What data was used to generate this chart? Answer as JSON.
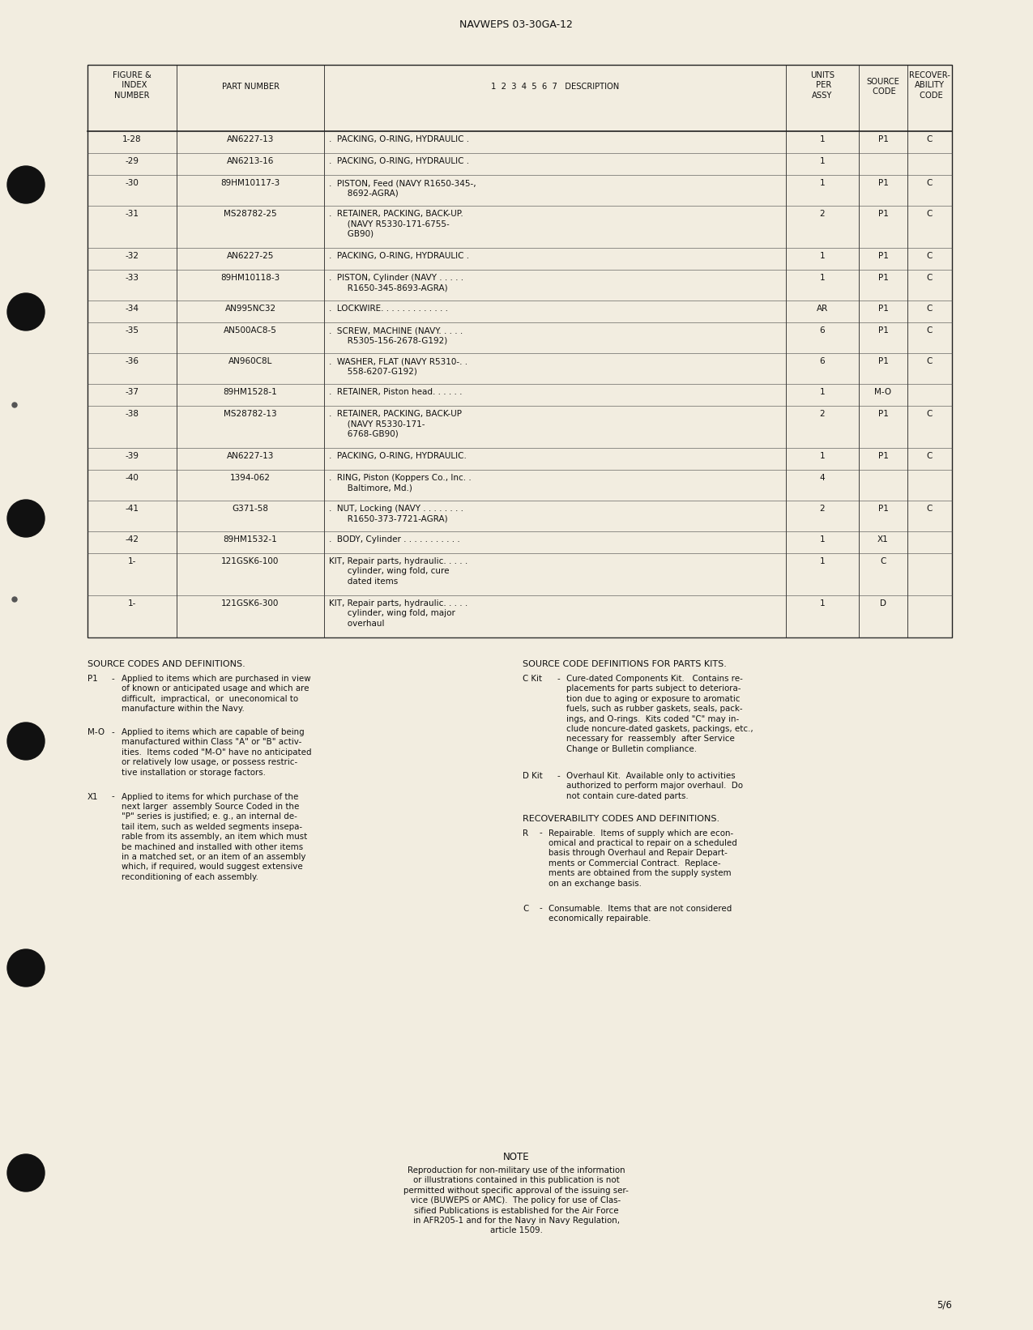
{
  "page_title": "NAVWEPS 03-30GA-12",
  "page_number": "5/6",
  "background_color": "#f2ede0",
  "table_rows": [
    {
      "fig": "1-28",
      "part": "AN6227-13",
      "desc": ".  PACKING, O-RING, HYDRAULIC .",
      "qty": "1",
      "src": "P1",
      "rec": "C",
      "nlines": 1
    },
    {
      "fig": "-29",
      "part": "AN6213-16",
      "desc": ".  PACKING, O-RING, HYDRAULIC .",
      "qty": "1",
      "src": "",
      "rec": "",
      "nlines": 1
    },
    {
      "fig": "-30",
      "part": "89HM10117-3",
      "desc": ".  PISTON, Feed (NAVY R1650-345-,\n       8692-AGRA)",
      "qty": "1",
      "src": "P1",
      "rec": "C",
      "nlines": 2
    },
    {
      "fig": "-31",
      "part": "MS28782-25",
      "desc": ".  RETAINER, PACKING, BACK-UP.\n       (NAVY R5330-171-6755-\n       GB90)",
      "qty": "2",
      "src": "P1",
      "rec": "C",
      "nlines": 3
    },
    {
      "fig": "-32",
      "part": "AN6227-25",
      "desc": ".  PACKING, O-RING, HYDRAULIC .",
      "qty": "1",
      "src": "P1",
      "rec": "C",
      "nlines": 1
    },
    {
      "fig": "-33",
      "part": "89HM10118-3",
      "desc": ".  PISTON, Cylinder (NAVY . . . . .\n       R1650-345-8693-AGRA)",
      "qty": "1",
      "src": "P1",
      "rec": "C",
      "nlines": 2
    },
    {
      "fig": "-34",
      "part": "AN995NC32",
      "desc": ".  LOCKWIRE. . . . . . . . . . . . .",
      "qty": "AR",
      "src": "P1",
      "rec": "C",
      "nlines": 1
    },
    {
      "fig": "-35",
      "part": "AN500AC8-5",
      "desc": ".  SCREW, MACHINE (NAVY. . . . .\n       R5305-156-2678-G192)",
      "qty": "6",
      "src": "P1",
      "rec": "C",
      "nlines": 2
    },
    {
      "fig": "-36",
      "part": "AN960C8L",
      "desc": ".  WASHER, FLAT (NAVY R5310-. .\n       558-6207-G192)",
      "qty": "6",
      "src": "P1",
      "rec": "C",
      "nlines": 2
    },
    {
      "fig": "-37",
      "part": "89HM1528-1",
      "desc": ".  RETAINER, Piston head. . . . . .",
      "qty": "1",
      "src": "M-O",
      "rec": "",
      "nlines": 1
    },
    {
      "fig": "-38",
      "part": "MS28782-13",
      "desc": ".  RETAINER, PACKING, BACK-UP\n       (NAVY R5330-171-\n       6768-GB90)",
      "qty": "2",
      "src": "P1",
      "rec": "C",
      "nlines": 3
    },
    {
      "fig": "-39",
      "part": "AN6227-13",
      "desc": ".  PACKING, O-RING, HYDRAULIC.",
      "qty": "1",
      "src": "P1",
      "rec": "C",
      "nlines": 1
    },
    {
      "fig": "-40",
      "part": "1394-062",
      "desc": ".  RING, Piston (Koppers Co., Inc. .\n       Baltimore, Md.)",
      "qty": "4",
      "src": "",
      "rec": "",
      "nlines": 2
    },
    {
      "fig": "-41",
      "part": "G371-58",
      "desc": ".  NUT, Locking (NAVY . . . . . . . .\n       R1650-373-7721-AGRA)",
      "qty": "2",
      "src": "P1",
      "rec": "C",
      "nlines": 2
    },
    {
      "fig": "-42",
      "part": "89HM1532-1",
      "desc": ".  BODY, Cylinder . . . . . . . . . . .",
      "qty": "1",
      "src": "X1",
      "rec": "",
      "nlines": 1
    },
    {
      "fig": "1-",
      "part": "121GSK6-100",
      "desc": "KIT, Repair parts, hydraulic. . . . .\n       cylinder, wing fold, cure\n       dated items",
      "qty": "1",
      "src": "C",
      "rec": "",
      "nlines": 3
    },
    {
      "fig": "1-",
      "part": "121GSK6-300",
      "desc": "KIT, Repair parts, hydraulic. . . . .\n       cylinder, wing fold, major\n       overhaul",
      "qty": "1",
      "src": "D",
      "rec": "",
      "nlines": 3
    }
  ],
  "source_codes": [
    {
      "code": "P1",
      "dash": "-",
      "text": "Applied to items which are purchased in view\nof known or anticipated usage and which are\ndifficult,  impractical,  or  uneconomical to\nmanufacture within the Navy."
    },
    {
      "code": "M-O",
      "dash": "-",
      "text": "Applied to items which are capable of being\nmanufactured within Class \"A\" or \"B\" activ-\nities.  Items coded \"M-O\" have no anticipated\nor relatively low usage, or possess restric-\ntive installation or storage factors."
    },
    {
      "code": "X1",
      "dash": "-",
      "text": "Applied to items for which purchase of the\nnext larger  assembly Source Coded in the\n\"P\" series is justified; e. g., an internal de-\ntail item, such as welded segments insepa-\nrable from its assembly, an item which must\nbe machined and installed with other items\nin a matched set, or an item of an assembly\nwhich, if required, would suggest extensive\nreconditioning of each assembly."
    }
  ],
  "parts_kits": [
    {
      "code": "C Kit",
      "dash": "-",
      "text": "Cure-dated Components Kit.   Contains re-\nplacements for parts subject to deteriora-\ntion due to aging or exposure to aromatic\nfuels, such as rubber gaskets, seals, pack-\nings, and O-rings.  Kits coded \"C\" may in-\nclude noncure-dated gaskets, packings, etc.,\nnecessary for  reassembly  after Service\nChange or Bulletin compliance."
    },
    {
      "code": "D Kit",
      "dash": "-",
      "text": "Overhaul Kit.  Available only to activities\nauthorized to perform major overhaul.  Do\nnot contain cure-dated parts."
    }
  ],
  "recover_codes": [
    {
      "code": "R",
      "dash": "-",
      "text": "Repairable.  Items of supply which are econ-\nomical and practical to repair on a scheduled\nbasis through Overhaul and Repair Depart-\nments or Commercial Contract.  Replace-\nments are obtained from the supply system\non an exchange basis."
    },
    {
      "code": "C",
      "dash": "-",
      "text": "Consumable.  Items that are not considered\neconomically repairable."
    }
  ],
  "note_text": "Reproduction for non-military use of the information\nor illustrations contained in this publication is not\npermitted without specific approval of the issuing ser-\nvice (BUWEPS or AMC).  The policy for use of Clas-\nsified Publications is established for the Air Force\nin AFR205-1 and for the Navy in Navy Regulation,\narticle 1509."
}
